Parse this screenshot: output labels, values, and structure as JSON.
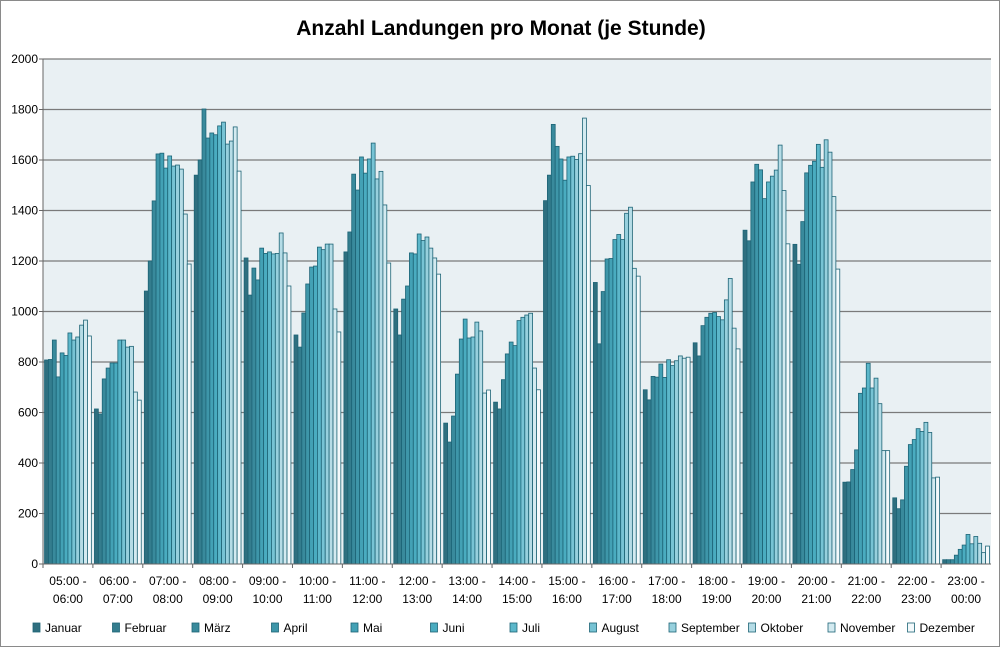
{
  "chart_data": {
    "type": "bar",
    "title": "Anzahl Landungen pro Monat (je Stunde)",
    "xlabel": "",
    "ylabel": "",
    "ylim": [
      0,
      2000
    ],
    "yticks": [
      0,
      200,
      400,
      600,
      800,
      1000,
      1200,
      1400,
      1600,
      1800,
      2000
    ],
    "grid": true,
    "legend_position": "bottom",
    "categories": [
      [
        "05:00 -",
        "06:00"
      ],
      [
        "06:00 -",
        "07:00"
      ],
      [
        "07:00 -",
        "08:00"
      ],
      [
        "08:00 -",
        "09:00"
      ],
      [
        "09:00 -",
        "10:00"
      ],
      [
        "10:00 -",
        "11:00"
      ],
      [
        "11:00 -",
        "12:00"
      ],
      [
        "12:00 -",
        "13:00"
      ],
      [
        "13:00 -",
        "14:00"
      ],
      [
        "14:00 -",
        "15:00"
      ],
      [
        "15:00 -",
        "16:00"
      ],
      [
        "16:00 -",
        "17:00"
      ],
      [
        "17:00 -",
        "18:00"
      ],
      [
        "18:00 -",
        "19:00"
      ],
      [
        "19:00 -",
        "20:00"
      ],
      [
        "20:00 -",
        "21:00"
      ],
      [
        "21:00 -",
        "22:00"
      ],
      [
        "22:00 -",
        "23:00"
      ],
      [
        "23:00 -",
        "00:00"
      ]
    ],
    "series": [
      {
        "name": "Januar",
        "color": "#2f6f7f",
        "values": [
          808,
          614,
          1081,
          1540,
          1212,
          907,
          1236,
          1010,
          558,
          641,
          1439,
          1115,
          690,
          876,
          1322,
          1266,
          324,
          262,
          17
        ]
      },
      {
        "name": "Februar",
        "color": "#347d8e",
        "values": [
          810,
          594,
          1200,
          1600,
          1065,
          859,
          1315,
          907,
          483,
          614,
          1540,
          872,
          650,
          824,
          1280,
          1187,
          325,
          219,
          17
        ]
      },
      {
        "name": "März",
        "color": "#398a9c",
        "values": [
          887,
          733,
          1438,
          1802,
          1172,
          994,
          1544,
          1049,
          586,
          730,
          1741,
          1079,
          743,
          944,
          1513,
          1356,
          374,
          254,
          17
        ]
      },
      {
        "name": "April",
        "color": "#3e96a9",
        "values": [
          741,
          776,
          1624,
          1687,
          1125,
          1109,
          1481,
          1101,
          752,
          832,
          1654,
          1208,
          740,
          977,
          1583,
          1549,
          452,
          387,
          35
        ]
      },
      {
        "name": "Mai",
        "color": "#43a1b5",
        "values": [
          836,
          796,
          1627,
          1707,
          1251,
          1176,
          1612,
          1232,
          891,
          879,
          1604,
          1210,
          792,
          993,
          1561,
          1579,
          676,
          473,
          58
        ]
      },
      {
        "name": "Juni",
        "color": "#4aacc0",
        "values": [
          826,
          796,
          1568,
          1700,
          1230,
          1180,
          1548,
          1228,
          970,
          865,
          1520,
          1285,
          739,
          996,
          1447,
          1595,
          697,
          493,
          75
        ]
      },
      {
        "name": "Juli",
        "color": "#5cb7ca",
        "values": [
          915,
          887,
          1616,
          1735,
          1236,
          1255,
          1604,
          1307,
          895,
          964,
          1612,
          1305,
          809,
          980,
          1513,
          1662,
          795,
          536,
          117
        ]
      },
      {
        "name": "August",
        "color": "#77c3d4",
        "values": [
          887,
          887,
          1576,
          1750,
          1228,
          1245,
          1667,
          1281,
          899,
          977,
          1615,
          1285,
          786,
          967,
          1536,
          1571,
          697,
          525,
          80
        ]
      },
      {
        "name": "September",
        "color": "#97d0dd",
        "values": [
          899,
          859,
          1580,
          1663,
          1230,
          1267,
          1525,
          1295,
          958,
          986,
          1602,
          1389,
          805,
          1046,
          1560,
          1680,
          736,
          561,
          109
        ]
      },
      {
        "name": "Oktober",
        "color": "#b5dce6",
        "values": [
          946,
          862,
          1564,
          1675,
          1311,
          1267,
          1555,
          1251,
          923,
          993,
          1625,
          1413,
          824,
          1131,
          1659,
          1631,
          635,
          521,
          82
        ]
      },
      {
        "name": "November",
        "color": "#d3eaf0",
        "values": [
          966,
          681,
          1386,
          1731,
          1232,
          1010,
          1422,
          1212,
          677,
          776,
          1766,
          1171,
          815,
          934,
          1479,
          1455,
          449,
          341,
          45
        ]
      },
      {
        "name": "Dezember",
        "color": "#f3f9fb",
        "values": [
          903,
          649,
          1188,
          1556,
          1101,
          919,
          1192,
          1148,
          689,
          690,
          1499,
          1140,
          819,
          852,
          1268,
          1168,
          449,
          344,
          71
        ]
      }
    ]
  }
}
